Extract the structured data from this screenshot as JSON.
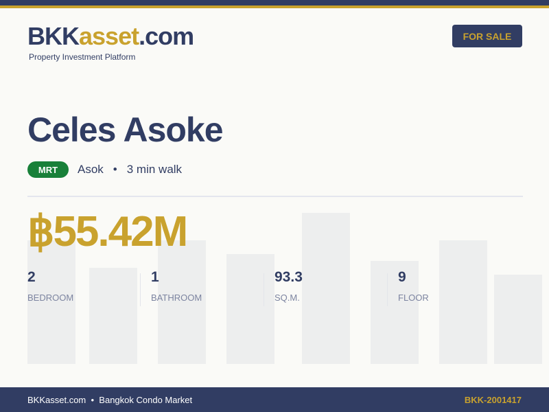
{
  "brand": {
    "name_part1": "BKK",
    "name_part2": "asset",
    "name_part3": ".com",
    "tagline": "Property Investment Platform"
  },
  "status_badge": "FOR SALE",
  "property": {
    "name": "Celes Asoke",
    "transit_type": "MRT",
    "station": "Asok",
    "separator": "•",
    "walk": "3 min walk",
    "price": "฿55.42M"
  },
  "stats": [
    {
      "value": "2",
      "label": "BEDROOM"
    },
    {
      "value": "1",
      "label": "BATHROOM"
    },
    {
      "value": "93.3",
      "label": "SQ.M."
    },
    {
      "value": "9",
      "label": "FLOOR"
    }
  ],
  "footer": {
    "site": "BKKasset.com",
    "separator": "•",
    "market": "Bangkok Condo Market",
    "listing_id": "BKK-2001417"
  },
  "colors": {
    "navy": "#313d63",
    "gold": "#c9a22e",
    "mrt_green": "#188039"
  }
}
